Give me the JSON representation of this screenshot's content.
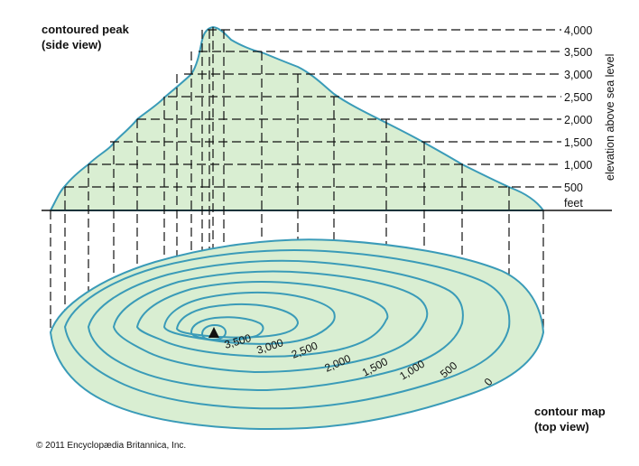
{
  "side_view_title": {
    "line1": "contoured peak",
    "line2": "(side view)"
  },
  "top_view_title": {
    "line1": "contour map",
    "line2": "(top view)"
  },
  "axis": {
    "label": "elevation above sea level",
    "unit": "feet"
  },
  "elevation_levels": [
    "4,000",
    "3,500",
    "3,000",
    "2,500",
    "2,000",
    "1,500",
    "1,000",
    "500"
  ],
  "contour_labels": [
    "3,500",
    "3,000",
    "2,500",
    "2,000",
    "1,500",
    "1,000",
    "500",
    "0"
  ],
  "copyright": "© 2011 Encyclopædia Britannica, Inc.",
  "colors": {
    "fill": "#d9eed2",
    "contour_line": "#3a9bb8",
    "dash": "#111111"
  },
  "icons": {
    "summit": "summit-triangle-icon"
  }
}
